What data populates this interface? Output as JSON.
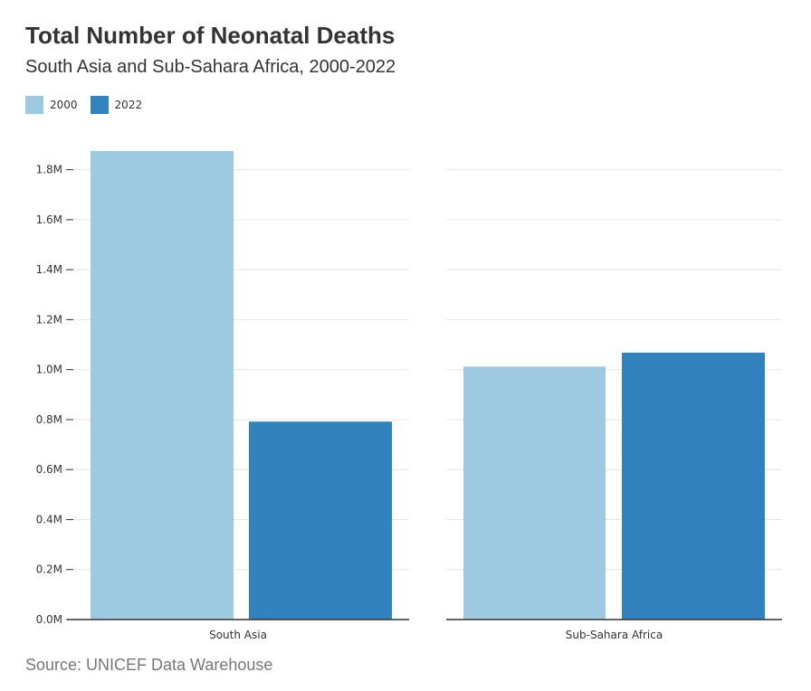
{
  "header": {
    "title": "Total Number of Neonatal Deaths",
    "subtitle": "South Asia and Sub-Sahara Africa, 2000-2022"
  },
  "legend": [
    {
      "label": "2000",
      "color": "#9ecae1"
    },
    {
      "label": "2022",
      "color": "#3182bd"
    }
  ],
  "footer": {
    "source": "Source: UNICEF Data Warehouse"
  },
  "chart_data": {
    "type": "bar",
    "title": "Total Number of Neonatal Deaths",
    "subtitle": "South Asia and Sub-Sahara Africa, 2000-2022",
    "categories": [
      "South Asia",
      "Sub-Sahara Africa"
    ],
    "series": [
      {
        "name": "2000",
        "color": "#9ecae1",
        "values": [
          1875000,
          1012000
        ]
      },
      {
        "name": "2022",
        "color": "#3182bd",
        "values": [
          792000,
          1068000
        ]
      }
    ],
    "ylim": [
      0,
      1900000
    ],
    "yticks": [
      0,
      200000,
      400000,
      600000,
      800000,
      1000000,
      1200000,
      1400000,
      1600000,
      1800000
    ],
    "ytick_labels": [
      "0.0M",
      "0.2M",
      "0.4M",
      "0.6M",
      "0.8M",
      "1.0M",
      "1.2M",
      "1.4M",
      "1.6M",
      "1.8M"
    ],
    "grid": true,
    "legend_position": "top-left",
    "layout": "small-multiples"
  }
}
